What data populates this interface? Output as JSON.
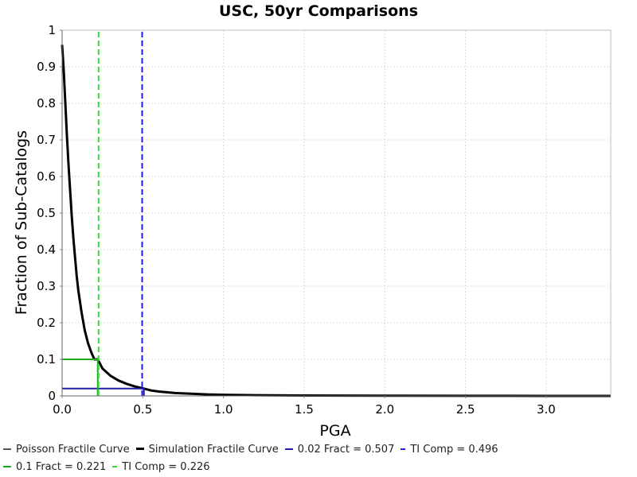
{
  "chart_data": {
    "type": "line",
    "title": "USC, 50yr Comparisons",
    "xlabel": "PGA",
    "ylabel": "Fraction of Sub-Catalogs",
    "xlim": [
      0,
      3.4
    ],
    "ylim": [
      0,
      1
    ],
    "x_ticks": [
      "0.0",
      "0.5",
      "1.0",
      "1.5",
      "2.0",
      "2.5",
      "3.0"
    ],
    "y_ticks": [
      "0",
      "0.1",
      "0.2",
      "0.3",
      "0.4",
      "0.5",
      "0.6",
      "0.7",
      "0.8",
      "0.9",
      "1"
    ],
    "grid": true,
    "series": [
      {
        "name": "Poisson Fractile Curve",
        "color": "#555555",
        "style": "solid",
        "points": []
      },
      {
        "name": "Simulation Fractile Curve",
        "color": "#000000",
        "style": "solid",
        "points": [
          [
            0.0,
            0.96
          ],
          [
            0.01,
            0.89
          ],
          [
            0.02,
            0.8
          ],
          [
            0.03,
            0.71
          ],
          [
            0.04,
            0.63
          ],
          [
            0.05,
            0.56
          ],
          [
            0.06,
            0.49
          ],
          [
            0.07,
            0.43
          ],
          [
            0.08,
            0.38
          ],
          [
            0.09,
            0.33
          ],
          [
            0.1,
            0.29
          ],
          [
            0.12,
            0.23
          ],
          [
            0.14,
            0.18
          ],
          [
            0.16,
            0.145
          ],
          [
            0.18,
            0.12
          ],
          [
            0.2,
            0.1
          ],
          [
            0.221,
            0.1
          ],
          [
            0.25,
            0.075
          ],
          [
            0.3,
            0.055
          ],
          [
            0.35,
            0.042
          ],
          [
            0.4,
            0.033
          ],
          [
            0.45,
            0.026
          ],
          [
            0.507,
            0.02
          ],
          [
            0.55,
            0.015
          ],
          [
            0.6,
            0.012
          ],
          [
            0.7,
            0.008
          ],
          [
            0.8,
            0.006
          ],
          [
            0.9,
            0.004
          ],
          [
            1.0,
            0.003
          ],
          [
            1.2,
            0.002
          ],
          [
            1.5,
            0.001
          ],
          [
            2.0,
            0.0006
          ],
          [
            2.5,
            0.0003
          ],
          [
            3.0,
            0.0001
          ],
          [
            3.4,
            0.0
          ]
        ]
      },
      {
        "name": "0.02 Fract = 0.507",
        "color": "#1f1fa8",
        "style": "solid",
        "points": [
          [
            0.0,
            0.02
          ],
          [
            0.507,
            0.02
          ],
          [
            0.507,
            0.0
          ]
        ]
      },
      {
        "name": "TI Comp = 0.496",
        "color": "#1f1fe0",
        "style": "dashed",
        "points": [
          [
            0.496,
            0.0
          ],
          [
            0.496,
            1.0
          ]
        ]
      },
      {
        "name": "0.1 Fract = 0.221",
        "color": "#1faa1f",
        "style": "solid",
        "points": [
          [
            0.0,
            0.1
          ],
          [
            0.221,
            0.1
          ],
          [
            0.221,
            0.0
          ]
        ]
      },
      {
        "name": "TI Comp = 0.226",
        "color": "#33dd33",
        "style": "dashed",
        "points": [
          [
            0.226,
            0.0
          ],
          [
            0.226,
            1.0
          ]
        ]
      }
    ]
  }
}
